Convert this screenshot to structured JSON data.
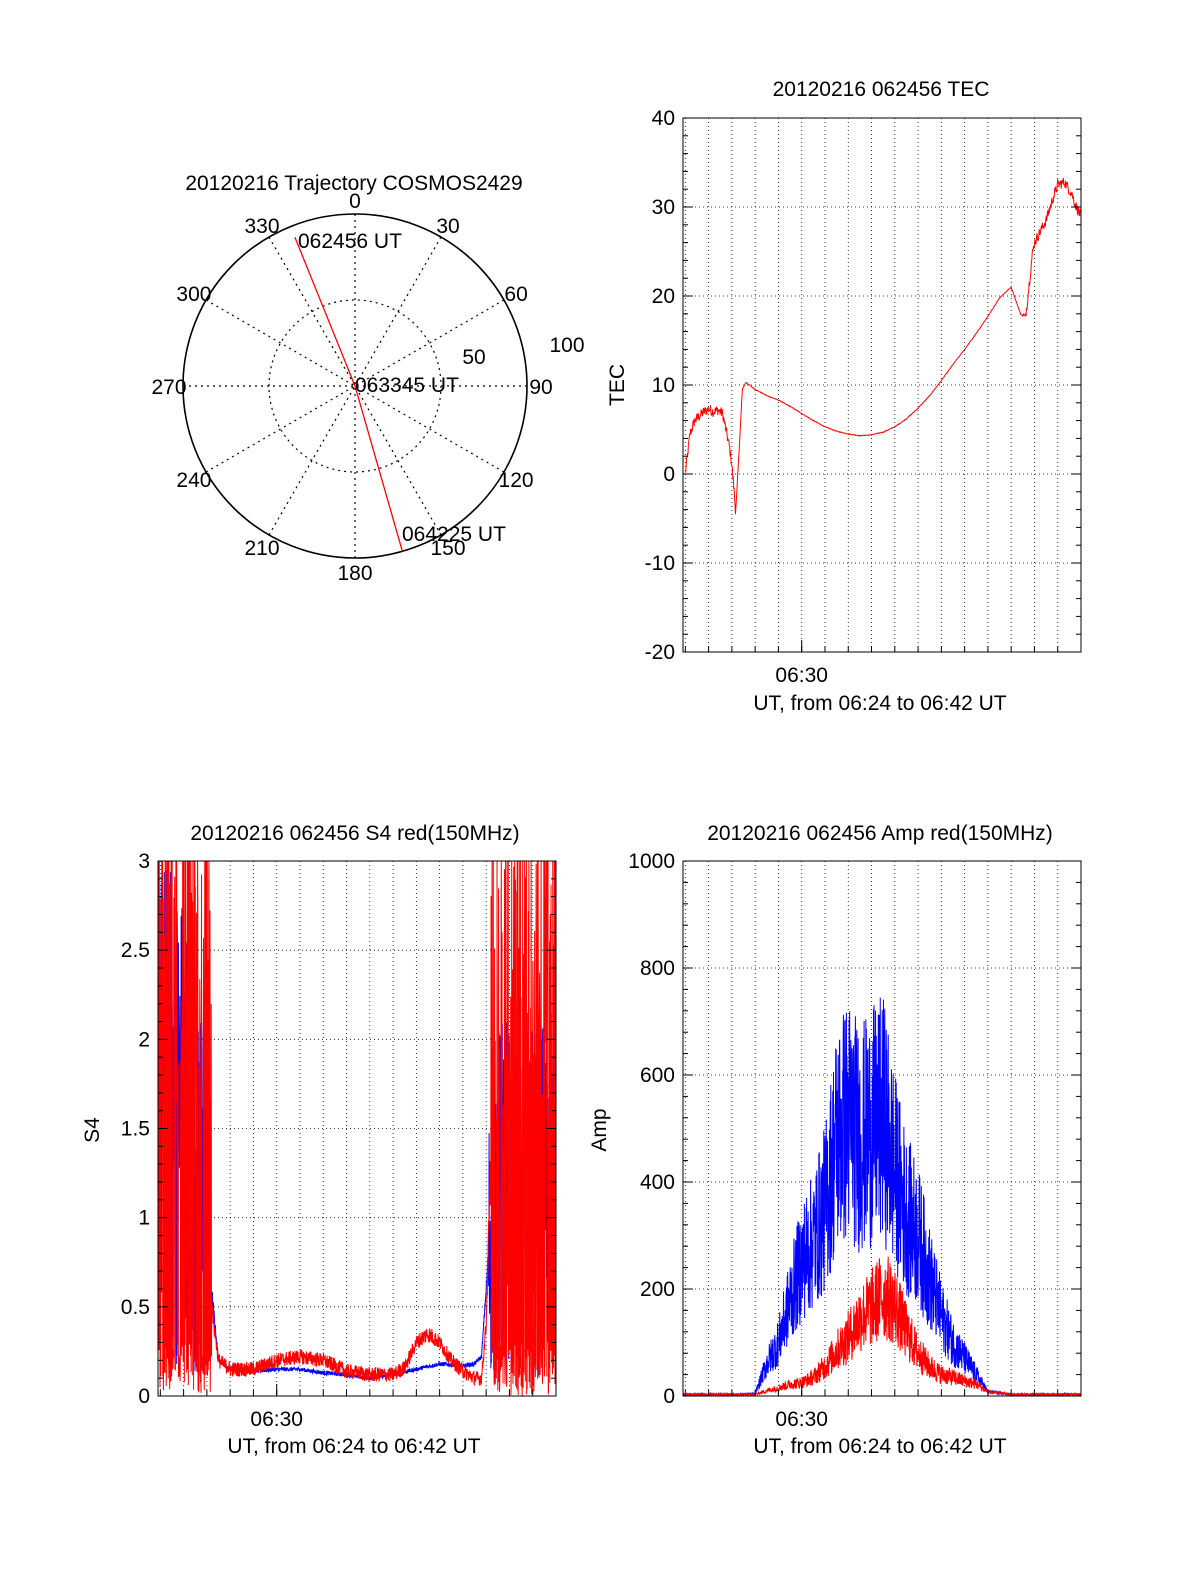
{
  "chart_data": [
    {
      "type": "polar",
      "title": "20120216 Trajectory COSMOS2429",
      "azimuth_labels": [
        "0",
        "30",
        "60",
        "90",
        "120",
        "150",
        "180",
        "210",
        "240",
        "270",
        "300",
        "330"
      ],
      "radial_label": "50",
      "outer_label": "100",
      "trajectory": {
        "color": "#ff0000",
        "points": [
          {
            "az": 338,
            "zen": 84
          },
          {
            "az": 0,
            "zen": 0
          },
          {
            "az": 164,
            "zen": 90
          }
        ]
      },
      "annotations": [
        {
          "text": "062456 UT"
        },
        {
          "text": "063345 UT"
        },
        {
          "text": "064225 UT"
        }
      ]
    },
    {
      "type": "line",
      "title": "20120216 062456 TEC",
      "xlabel": "UT, from 06:24 to 06:42 UT",
      "ylabel": "TEC",
      "xlim_min": [
        24.9,
        42.0
      ],
      "ylim": [
        -20,
        40
      ],
      "yticks": [
        -20,
        -10,
        0,
        10,
        20,
        30,
        40
      ],
      "xtick_labels": [
        {
          "min": 30,
          "label": "06:30"
        }
      ],
      "grid": true,
      "series": [
        {
          "color": "#ff0000",
          "noise": "low",
          "x_min": [
            25.0,
            25.2,
            25.4,
            25.6,
            25.8,
            26.0,
            26.2,
            26.4,
            26.6,
            26.9,
            27.0,
            27.1,
            27.15,
            27.2,
            27.3,
            27.45,
            27.6,
            28.0,
            28.5,
            29.0,
            29.5,
            30.0,
            30.5,
            31.0,
            31.5,
            32.0,
            32.5,
            33.0,
            33.5,
            34.0,
            34.5,
            35.0,
            35.5,
            36.0,
            36.5,
            37.0,
            37.5,
            38.0,
            38.5,
            39.0,
            39.4,
            39.6,
            39.7,
            39.8,
            39.9,
            40.0,
            40.1,
            40.3,
            40.5,
            40.8,
            41.0,
            41.3,
            41.6,
            41.8,
            42.0
          ],
          "values": [
            0,
            4.5,
            6.0,
            6.5,
            7.0,
            7.3,
            7.0,
            7.2,
            6.8,
            3.0,
            1.0,
            -2.0,
            -4.0,
            -3.0,
            2.0,
            9.5,
            10.3,
            9.5,
            8.8,
            8.3,
            7.6,
            6.8,
            6.0,
            5.3,
            4.8,
            4.5,
            4.3,
            4.4,
            4.7,
            5.3,
            6.2,
            7.4,
            8.8,
            10.5,
            12.3,
            14.0,
            15.8,
            17.7,
            19.8,
            21.0,
            18.0,
            17.5,
            19.5,
            22.0,
            24.5,
            26.0,
            26.5,
            27.5,
            28.5,
            31.0,
            32.5,
            32.8,
            31.5,
            30.0,
            29.0
          ]
        }
      ]
    },
    {
      "type": "line",
      "title": "20120216 062456 S4 red(150MHz)",
      "xlabel": "UT, from 06:24 to 06:42 UT",
      "ylabel": "S4",
      "xlim_min": [
        24.9,
        42.0
      ],
      "ylim": [
        0,
        3
      ],
      "yticks": [
        0,
        0.5,
        1,
        1.5,
        2,
        2.5,
        3
      ],
      "xtick_labels": [
        {
          "min": 30,
          "label": "06:30"
        }
      ],
      "grid": true,
      "series": [
        {
          "color": "#0000ff",
          "noise": "high",
          "x_min": [
            24.9,
            25.3,
            25.8,
            26.4,
            27.0,
            27.2,
            27.5,
            28.0,
            29.0,
            30.0,
            31.0,
            32.0,
            33.0,
            34.0,
            35.0,
            36.0,
            37.0,
            38.0,
            38.5,
            38.8,
            39.0,
            39.2,
            39.5,
            40.0,
            40.5,
            41.0,
            41.5,
            42.0
          ],
          "values": [
            1.6,
            1.6,
            1.55,
            1.4,
            1.0,
            0.6,
            0.2,
            0.15,
            0.14,
            0.15,
            0.15,
            0.13,
            0.12,
            0.1,
            0.12,
            0.15,
            0.18,
            0.17,
            0.18,
            0.22,
            0.6,
            1.0,
            1.1,
            1.15,
            1.2,
            1.1,
            1.1,
            1.2
          ]
        },
        {
          "color": "#ff0000",
          "noise": "extreme",
          "x_min": [
            24.9,
            25.5,
            26.0,
            26.5,
            27.0,
            27.3,
            27.5,
            28.0,
            29.0,
            30.0,
            31.0,
            32.0,
            33.0,
            34.0,
            35.0,
            35.5,
            36.0,
            36.5,
            37.0,
            37.5,
            38.0,
            38.5,
            38.8,
            39.0,
            39.3,
            39.6,
            40.0,
            40.5,
            41.0,
            41.5,
            42.0
          ],
          "values": [
            1.5,
            1.5,
            1.4,
            1.0,
            0.9,
            0.4,
            0.2,
            0.15,
            0.15,
            0.2,
            0.22,
            0.2,
            0.14,
            0.12,
            0.12,
            0.16,
            0.3,
            0.35,
            0.3,
            0.2,
            0.14,
            0.1,
            0.1,
            0.4,
            1.8,
            2.8,
            2.9,
            2.9,
            2.8,
            2.9,
            3.0
          ]
        }
      ]
    },
    {
      "type": "line",
      "title": "20120216 062456 Amp red(150MHz)",
      "xlabel": "UT, from 06:24 to 06:42 UT",
      "ylabel": "Amp",
      "xlim_min": [
        24.9,
        42.0
      ],
      "ylim": [
        0,
        1000
      ],
      "yticks": [
        0,
        200,
        400,
        600,
        800,
        1000
      ],
      "xtick_labels": [
        {
          "min": 30,
          "label": "06:30"
        }
      ],
      "grid": true,
      "series": [
        {
          "color": "#0000ff",
          "noise": "amp",
          "x_min": [
            24.9,
            27.0,
            28.0,
            28.5,
            29.0,
            29.5,
            30.0,
            30.5,
            31.0,
            31.5,
            32.0,
            32.5,
            33.0,
            33.5,
            34.0,
            34.5,
            35.0,
            35.5,
            36.0,
            36.5,
            37.0,
            37.5,
            38.0,
            39.0,
            42.0
          ],
          "values": [
            3,
            3,
            4,
            60,
            100,
            180,
            250,
            290,
            350,
            480,
            520,
            480,
            500,
            520,
            420,
            340,
            300,
            220,
            150,
            100,
            70,
            40,
            8,
            3,
            3
          ]
        },
        {
          "color": "#ff0000",
          "noise": "amp",
          "x_min": [
            24.9,
            28.0,
            28.5,
            29.0,
            29.5,
            30.0,
            30.5,
            31.0,
            31.5,
            32.0,
            32.5,
            33.0,
            33.5,
            34.0,
            34.5,
            35.0,
            35.5,
            36.0,
            36.5,
            37.0,
            37.5,
            38.0,
            39.0,
            42.0
          ],
          "values": [
            3,
            3,
            10,
            15,
            22,
            25,
            35,
            55,
            85,
            110,
            145,
            165,
            190,
            170,
            120,
            80,
            55,
            40,
            35,
            28,
            22,
            8,
            3,
            3
          ]
        }
      ]
    }
  ]
}
